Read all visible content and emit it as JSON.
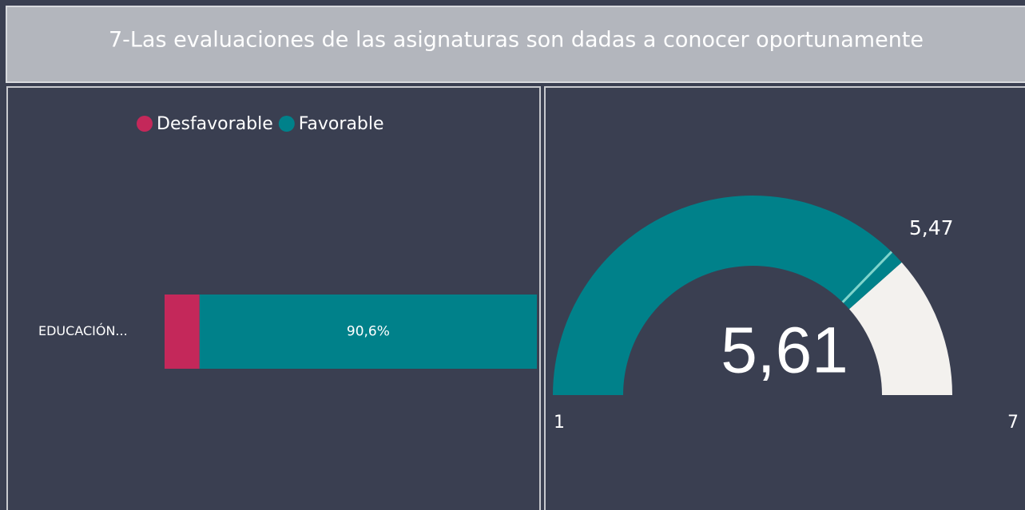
{
  "header": {
    "title": "7-Las evaluaciones de las asignaturas son dadas a conocer oportunamente"
  },
  "chart_data": [
    {
      "type": "bar",
      "orientation": "horizontal",
      "stacked": true,
      "categories": [
        "EDUCACIÓN..."
      ],
      "xlim": [
        0,
        100
      ],
      "series": [
        {
          "name": "Desfavorable",
          "color": "#c4285a",
          "values": [
            9.4
          ]
        },
        {
          "name": "Favorable",
          "color": "#00818a",
          "values": [
            90.6
          ],
          "value_labels": [
            "90,6%"
          ]
        }
      ]
    },
    {
      "type": "gauge",
      "values": [
        5.61
      ],
      "value_labels": [
        "5,61"
      ],
      "color": "#00818a",
      "track_color": "#f3f1ee",
      "ylim": [
        1,
        7
      ],
      "yticks": [
        1,
        7
      ],
      "target": 5.47,
      "target_label": "5,47",
      "target_color": "#7fd4cc"
    }
  ]
}
